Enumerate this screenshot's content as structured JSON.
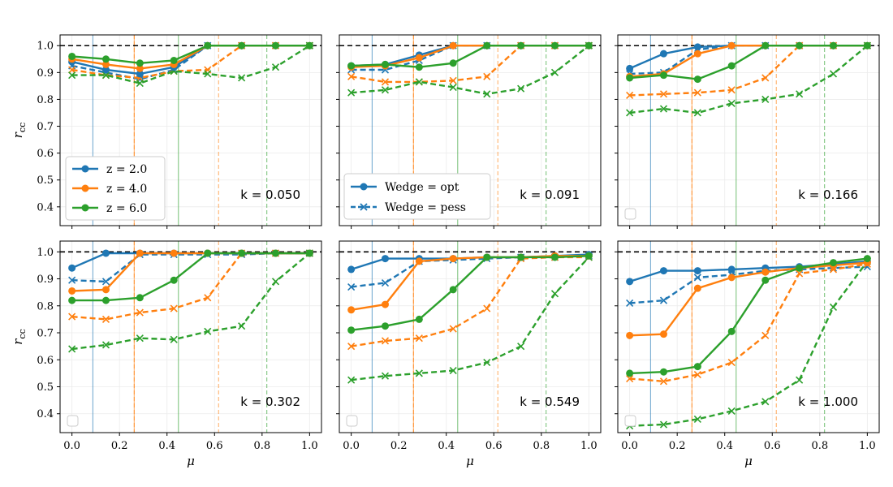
{
  "figure": {
    "x_ticks": [
      "0.0",
      "0.2",
      "0.4",
      "0.6",
      "0.8",
      "1.0"
    ],
    "y_ticks": [
      "0.4",
      "0.5",
      "0.6",
      "0.7",
      "0.8",
      "0.9",
      "1.0"
    ]
  },
  "legend_redshift": [
    {
      "label": "z = 2.0",
      "color": "#1f77b4"
    },
    {
      "label": "z = 4.0",
      "color": "#ff7f0e"
    },
    {
      "label": "z = 6.0",
      "color": "#2ca02c"
    }
  ],
  "legend_wedge": [
    {
      "label": "Wedge = opt",
      "style": "solid-circle"
    },
    {
      "label": "Wedge = pess",
      "style": "dashed-x"
    }
  ],
  "chart_data": [
    {
      "type": "line",
      "panel": "k0.050",
      "title": "k = 0.050",
      "xlabel": "μ",
      "ylabel": "r_cc",
      "xlim": [
        -0.05,
        1.05
      ],
      "ylim": [
        0.33,
        1.04
      ],
      "reference_line": 1.0,
      "vlines": [
        {
          "x": 0.088,
          "color": "#1f77b4",
          "style": "solid"
        },
        {
          "x": 0.262,
          "color": "#ff7f0e",
          "style": "dashed"
        },
        {
          "x": 0.262,
          "color": "#ff7f0e",
          "style": "solid"
        },
        {
          "x": 0.448,
          "color": "#2ca02c",
          "style": "solid"
        },
        {
          "x": 0.617,
          "color": "#ff7f0e",
          "style": "dashed"
        },
        {
          "x": 0.82,
          "color": "#2ca02c",
          "style": "dashed"
        }
      ],
      "x": [
        0.0,
        0.143,
        0.286,
        0.429,
        0.571,
        0.714,
        0.857,
        1.0
      ],
      "series": [
        {
          "name": "z = 2.0",
          "wedge": "opt",
          "color": "#1f77b4",
          "values": [
            0.94,
            0.91,
            0.895,
            0.92,
            1.0,
            1.0,
            1.0,
            1.0
          ]
        },
        {
          "name": "z = 4.0",
          "wedge": "opt",
          "color": "#ff7f0e",
          "values": [
            0.95,
            0.93,
            0.915,
            0.93,
            1.0,
            1.0,
            1.0,
            1.0
          ]
        },
        {
          "name": "z = 6.0",
          "wedge": "opt",
          "color": "#2ca02c",
          "values": [
            0.96,
            0.95,
            0.935,
            0.945,
            1.0,
            1.0,
            1.0,
            1.0
          ]
        },
        {
          "name": "z = 2.0",
          "wedge": "pess",
          "color": "#1f77b4",
          "values": [
            0.925,
            0.9,
            0.875,
            0.91,
            1.0,
            1.0,
            1.0,
            1.0
          ]
        },
        {
          "name": "z = 4.0",
          "wedge": "pess",
          "color": "#ff7f0e",
          "values": [
            0.91,
            0.89,
            0.88,
            0.905,
            0.91,
            1.0,
            1.0,
            1.0
          ]
        },
        {
          "name": "z = 6.0",
          "wedge": "pess",
          "color": "#2ca02c",
          "values": [
            0.89,
            0.89,
            0.86,
            0.905,
            0.895,
            0.88,
            0.92,
            1.0
          ]
        }
      ]
    },
    {
      "type": "line",
      "panel": "k0.091",
      "title": "k = 0.091",
      "xlabel": "μ",
      "ylabel": "",
      "xlim": [
        -0.05,
        1.05
      ],
      "ylim": [
        0.33,
        1.04
      ],
      "reference_line": 1.0,
      "vlines": [
        {
          "x": 0.088,
          "color": "#1f77b4",
          "style": "solid"
        },
        {
          "x": 0.262,
          "color": "#ff7f0e",
          "style": "dashed"
        },
        {
          "x": 0.262,
          "color": "#ff7f0e",
          "style": "solid"
        },
        {
          "x": 0.448,
          "color": "#2ca02c",
          "style": "solid"
        },
        {
          "x": 0.617,
          "color": "#ff7f0e",
          "style": "dashed"
        },
        {
          "x": 0.82,
          "color": "#2ca02c",
          "style": "dashed"
        }
      ],
      "x": [
        0.0,
        0.143,
        0.286,
        0.429,
        0.571,
        0.714,
        0.857,
        1.0
      ],
      "series": [
        {
          "name": "z = 2.0",
          "wedge": "opt",
          "color": "#1f77b4",
          "values": [
            0.925,
            0.93,
            0.965,
            1.0,
            1.0,
            1.0,
            1.0,
            1.0
          ]
        },
        {
          "name": "z = 4.0",
          "wedge": "opt",
          "color": "#ff7f0e",
          "values": [
            0.92,
            0.925,
            0.955,
            1.0,
            1.0,
            1.0,
            1.0,
            1.0
          ]
        },
        {
          "name": "z = 6.0",
          "wedge": "opt",
          "color": "#2ca02c",
          "values": [
            0.925,
            0.93,
            0.92,
            0.935,
            1.0,
            1.0,
            1.0,
            1.0
          ]
        },
        {
          "name": "z = 2.0",
          "wedge": "pess",
          "color": "#1f77b4",
          "values": [
            0.91,
            0.91,
            0.945,
            1.0,
            1.0,
            1.0,
            1.0,
            1.0
          ]
        },
        {
          "name": "z = 4.0",
          "wedge": "pess",
          "color": "#ff7f0e",
          "values": [
            0.885,
            0.865,
            0.865,
            0.87,
            0.885,
            1.0,
            1.0,
            1.0
          ]
        },
        {
          "name": "z = 6.0",
          "wedge": "pess",
          "color": "#2ca02c",
          "values": [
            0.825,
            0.835,
            0.865,
            0.845,
            0.82,
            0.84,
            0.9,
            1.0
          ]
        }
      ]
    },
    {
      "type": "line",
      "panel": "k0.166",
      "title": "k = 0.166",
      "xlabel": "μ",
      "ylabel": "",
      "xlim": [
        -0.05,
        1.05
      ],
      "ylim": [
        0.33,
        1.04
      ],
      "reference_line": 1.0,
      "vlines": [
        {
          "x": 0.088,
          "color": "#1f77b4",
          "style": "solid"
        },
        {
          "x": 0.262,
          "color": "#ff7f0e",
          "style": "dashed"
        },
        {
          "x": 0.262,
          "color": "#ff7f0e",
          "style": "solid"
        },
        {
          "x": 0.448,
          "color": "#2ca02c",
          "style": "solid"
        },
        {
          "x": 0.617,
          "color": "#ff7f0e",
          "style": "dashed"
        },
        {
          "x": 0.82,
          "color": "#2ca02c",
          "style": "dashed"
        }
      ],
      "x": [
        0.0,
        0.143,
        0.286,
        0.429,
        0.571,
        0.714,
        0.857,
        1.0
      ],
      "series": [
        {
          "name": "z = 2.0",
          "wedge": "opt",
          "color": "#1f77b4",
          "values": [
            0.915,
            0.97,
            0.995,
            1.0,
            1.0,
            1.0,
            1.0,
            1.0
          ]
        },
        {
          "name": "z = 4.0",
          "wedge": "opt",
          "color": "#ff7f0e",
          "values": [
            0.885,
            0.895,
            0.97,
            1.0,
            1.0,
            1.0,
            1.0,
            1.0
          ]
        },
        {
          "name": "z = 6.0",
          "wedge": "opt",
          "color": "#2ca02c",
          "values": [
            0.88,
            0.89,
            0.875,
            0.925,
            1.0,
            1.0,
            1.0,
            1.0
          ]
        },
        {
          "name": "z = 2.0",
          "wedge": "pess",
          "color": "#1f77b4",
          "values": [
            0.895,
            0.9,
            0.985,
            1.0,
            1.0,
            1.0,
            1.0,
            1.0
          ]
        },
        {
          "name": "z = 4.0",
          "wedge": "pess",
          "color": "#ff7f0e",
          "values": [
            0.815,
            0.82,
            0.825,
            0.835,
            0.88,
            1.0,
            1.0,
            1.0
          ]
        },
        {
          "name": "z = 6.0",
          "wedge": "pess",
          "color": "#2ca02c",
          "values": [
            0.75,
            0.765,
            0.75,
            0.785,
            0.8,
            0.82,
            0.895,
            1.0
          ]
        }
      ]
    },
    {
      "type": "line",
      "panel": "k0.302",
      "title": "k = 0.302",
      "xlabel": "μ",
      "ylabel": "r_cc",
      "xlim": [
        -0.05,
        1.05
      ],
      "ylim": [
        0.33,
        1.04
      ],
      "reference_line": 1.0,
      "vlines": [
        {
          "x": 0.088,
          "color": "#1f77b4",
          "style": "solid"
        },
        {
          "x": 0.262,
          "color": "#ff7f0e",
          "style": "dashed"
        },
        {
          "x": 0.262,
          "color": "#ff7f0e",
          "style": "solid"
        },
        {
          "x": 0.448,
          "color": "#2ca02c",
          "style": "solid"
        },
        {
          "x": 0.617,
          "color": "#ff7f0e",
          "style": "dashed"
        },
        {
          "x": 0.82,
          "color": "#2ca02c",
          "style": "dashed"
        }
      ],
      "x": [
        0.0,
        0.143,
        0.286,
        0.429,
        0.571,
        0.714,
        0.857,
        1.0
      ],
      "series": [
        {
          "name": "z = 2.0",
          "wedge": "opt",
          "color": "#1f77b4",
          "values": [
            0.94,
            0.995,
            0.995,
            0.995,
            0.995,
            0.995,
            0.995,
            0.995
          ]
        },
        {
          "name": "z = 4.0",
          "wedge": "opt",
          "color": "#ff7f0e",
          "values": [
            0.855,
            0.86,
            0.995,
            0.995,
            0.995,
            0.995,
            0.995,
            0.995
          ]
        },
        {
          "name": "z = 6.0",
          "wedge": "opt",
          "color": "#2ca02c",
          "values": [
            0.82,
            0.82,
            0.83,
            0.895,
            0.995,
            0.995,
            0.995,
            0.995
          ]
        },
        {
          "name": "z = 2.0",
          "wedge": "pess",
          "color": "#1f77b4",
          "values": [
            0.895,
            0.89,
            0.99,
            0.99,
            0.99,
            0.99,
            0.995,
            0.995
          ]
        },
        {
          "name": "z = 4.0",
          "wedge": "pess",
          "color": "#ff7f0e",
          "values": [
            0.76,
            0.75,
            0.775,
            0.79,
            0.83,
            0.995,
            0.995,
            0.995
          ]
        },
        {
          "name": "z = 6.0",
          "wedge": "pess",
          "color": "#2ca02c",
          "values": [
            0.64,
            0.655,
            0.68,
            0.675,
            0.705,
            0.725,
            0.89,
            0.995
          ]
        }
      ]
    },
    {
      "type": "line",
      "panel": "k0.549",
      "title": "k = 0.549",
      "xlabel": "μ",
      "ylabel": "",
      "xlim": [
        -0.05,
        1.05
      ],
      "ylim": [
        0.33,
        1.04
      ],
      "reference_line": 1.0,
      "vlines": [
        {
          "x": 0.088,
          "color": "#1f77b4",
          "style": "solid"
        },
        {
          "x": 0.262,
          "color": "#ff7f0e",
          "style": "dashed"
        },
        {
          "x": 0.262,
          "color": "#ff7f0e",
          "style": "solid"
        },
        {
          "x": 0.448,
          "color": "#2ca02c",
          "style": "solid"
        },
        {
          "x": 0.617,
          "color": "#ff7f0e",
          "style": "dashed"
        },
        {
          "x": 0.82,
          "color": "#2ca02c",
          "style": "dashed"
        }
      ],
      "x": [
        0.0,
        0.143,
        0.286,
        0.429,
        0.571,
        0.714,
        0.857,
        1.0
      ],
      "series": [
        {
          "name": "z = 2.0",
          "wedge": "opt",
          "color": "#1f77b4",
          "values": [
            0.935,
            0.975,
            0.975,
            0.975,
            0.98,
            0.98,
            0.985,
            0.99
          ]
        },
        {
          "name": "z = 4.0",
          "wedge": "opt",
          "color": "#ff7f0e",
          "values": [
            0.785,
            0.805,
            0.965,
            0.975,
            0.98,
            0.98,
            0.985,
            0.985
          ]
        },
        {
          "name": "z = 6.0",
          "wedge": "opt",
          "color": "#2ca02c",
          "values": [
            0.71,
            0.725,
            0.75,
            0.86,
            0.98,
            0.98,
            0.98,
            0.985
          ]
        },
        {
          "name": "z = 2.0",
          "wedge": "pess",
          "color": "#1f77b4",
          "values": [
            0.87,
            0.885,
            0.965,
            0.97,
            0.975,
            0.98,
            0.98,
            0.985
          ]
        },
        {
          "name": "z = 4.0",
          "wedge": "pess",
          "color": "#ff7f0e",
          "values": [
            0.65,
            0.67,
            0.68,
            0.715,
            0.79,
            0.975,
            0.98,
            0.98
          ]
        },
        {
          "name": "z = 6.0",
          "wedge": "pess",
          "color": "#2ca02c",
          "values": [
            0.525,
            0.54,
            0.55,
            0.56,
            0.59,
            0.65,
            0.845,
            0.98
          ]
        }
      ]
    },
    {
      "type": "line",
      "panel": "k1.000",
      "title": "k = 1.000",
      "xlabel": "μ",
      "ylabel": "",
      "xlim": [
        -0.05,
        1.05
      ],
      "ylim": [
        0.33,
        1.04
      ],
      "reference_line": 1.0,
      "vlines": [
        {
          "x": 0.088,
          "color": "#1f77b4",
          "style": "solid"
        },
        {
          "x": 0.262,
          "color": "#ff7f0e",
          "style": "dashed"
        },
        {
          "x": 0.262,
          "color": "#ff7f0e",
          "style": "solid"
        },
        {
          "x": 0.448,
          "color": "#2ca02c",
          "style": "solid"
        },
        {
          "x": 0.617,
          "color": "#ff7f0e",
          "style": "dashed"
        },
        {
          "x": 0.82,
          "color": "#2ca02c",
          "style": "dashed"
        }
      ],
      "x": [
        0.0,
        0.143,
        0.286,
        0.429,
        0.571,
        0.714,
        0.857,
        1.0
      ],
      "series": [
        {
          "name": "z = 2.0",
          "wedge": "opt",
          "color": "#1f77b4",
          "values": [
            0.89,
            0.93,
            0.93,
            0.935,
            0.94,
            0.945,
            0.955,
            0.965
          ]
        },
        {
          "name": "z = 4.0",
          "wedge": "opt",
          "color": "#ff7f0e",
          "values": [
            0.69,
            0.695,
            0.865,
            0.905,
            0.925,
            0.94,
            0.95,
            0.96
          ]
        },
        {
          "name": "z = 6.0",
          "wedge": "opt",
          "color": "#2ca02c",
          "values": [
            0.55,
            0.555,
            0.575,
            0.705,
            0.895,
            0.94,
            0.96,
            0.975
          ]
        },
        {
          "name": "z = 2.0",
          "wedge": "pess",
          "color": "#1f77b4",
          "values": [
            0.81,
            0.82,
            0.905,
            0.915,
            0.93,
            0.935,
            0.94,
            0.945
          ]
        },
        {
          "name": "z = 4.0",
          "wedge": "pess",
          "color": "#ff7f0e",
          "values": [
            0.53,
            0.52,
            0.545,
            0.59,
            0.69,
            0.92,
            0.935,
            0.955
          ]
        },
        {
          "name": "z = 6.0",
          "wedge": "pess",
          "color": "#2ca02c",
          "values": [
            0.355,
            0.36,
            0.38,
            0.41,
            0.445,
            0.525,
            0.795,
            0.965
          ]
        }
      ]
    }
  ]
}
